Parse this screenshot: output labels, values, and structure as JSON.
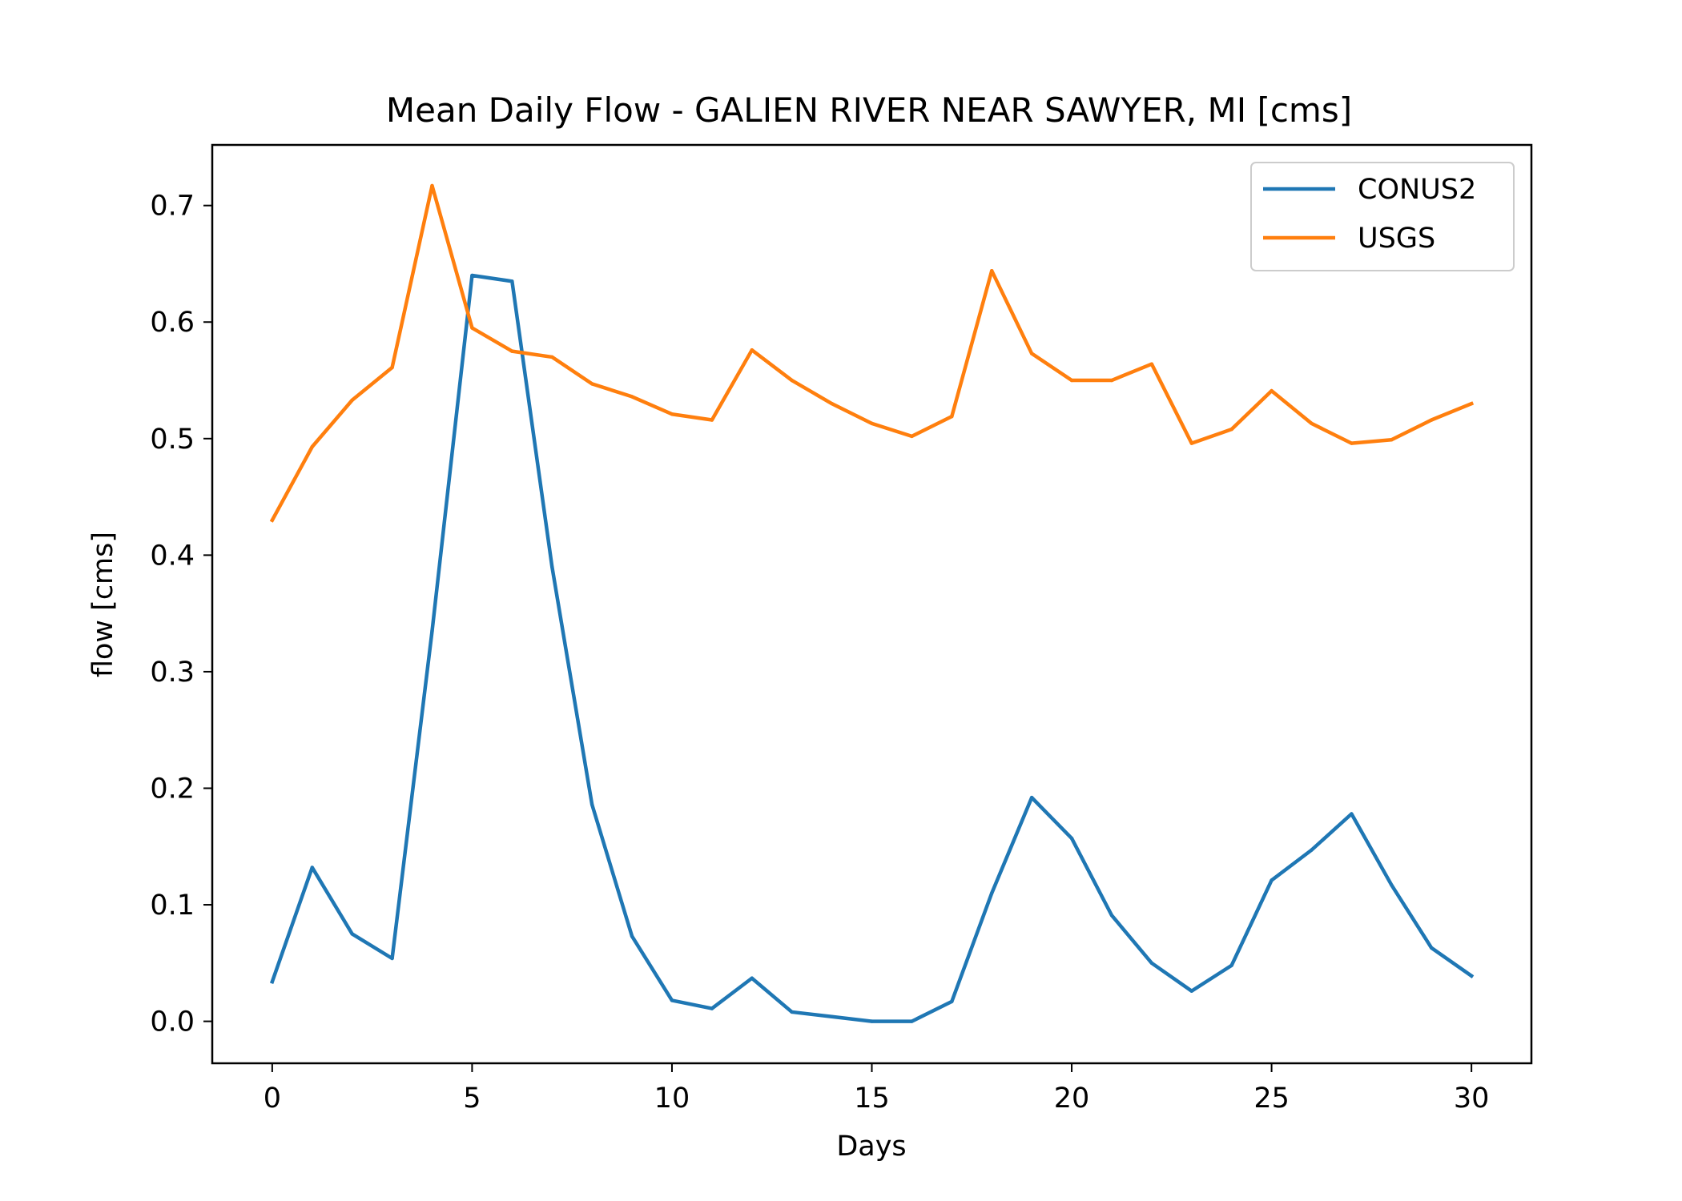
{
  "chart_data": {
    "type": "line",
    "title": "Mean Daily Flow - GALIEN RIVER NEAR SAWYER, MI [cms]",
    "xlabel": "Days",
    "ylabel": "flow [cms]",
    "xlim": [
      -1.5,
      31.5
    ],
    "ylim": [
      -0.036,
      0.752
    ],
    "xticks": [
      0,
      5,
      10,
      15,
      20,
      25,
      30
    ],
    "xtick_labels": [
      "0",
      "5",
      "10",
      "15",
      "20",
      "25",
      "30"
    ],
    "yticks": [
      0.0,
      0.1,
      0.2,
      0.3,
      0.4,
      0.5,
      0.6,
      0.7
    ],
    "ytick_labels": [
      "0.0",
      "0.1",
      "0.2",
      "0.3",
      "0.4",
      "0.5",
      "0.6",
      "0.7"
    ],
    "grid": false,
    "legend_position": "top-right",
    "x": [
      0,
      1,
      2,
      3,
      4,
      5,
      6,
      7,
      8,
      9,
      10,
      11,
      12,
      13,
      14,
      15,
      16,
      17,
      18,
      19,
      20,
      21,
      22,
      23,
      24,
      25,
      26,
      27,
      28,
      29,
      30
    ],
    "series": [
      {
        "name": "CONUS2",
        "color": "#1f77b4",
        "values": [
          0.034,
          0.132,
          0.075,
          0.054,
          0.335,
          0.64,
          0.635,
          0.39,
          0.186,
          0.073,
          0.018,
          0.011,
          0.037,
          0.008,
          0.004,
          0.0,
          0.0,
          0.017,
          0.11,
          0.192,
          0.157,
          0.091,
          0.05,
          0.026,
          0.048,
          0.121,
          0.147,
          0.178,
          0.117,
          0.063,
          0.039
        ]
      },
      {
        "name": "USGS",
        "color": "#ff7f0e",
        "values": [
          0.43,
          0.493,
          0.533,
          0.561,
          0.717,
          0.595,
          0.575,
          0.57,
          0.547,
          0.536,
          0.521,
          0.516,
          0.576,
          0.55,
          0.53,
          0.513,
          0.502,
          0.519,
          0.644,
          0.573,
          0.55,
          0.55,
          0.564,
          0.496,
          0.508,
          0.541,
          0.513,
          0.496,
          0.499,
          0.516,
          0.53
        ]
      }
    ]
  }
}
